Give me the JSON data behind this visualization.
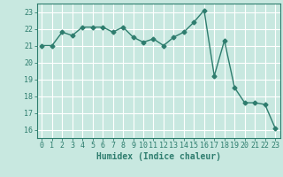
{
  "x": [
    0,
    1,
    2,
    3,
    4,
    5,
    6,
    7,
    8,
    9,
    10,
    11,
    12,
    13,
    14,
    15,
    16,
    17,
    18,
    19,
    20,
    21,
    22,
    23
  ],
  "y": [
    21.0,
    21.0,
    21.8,
    21.6,
    22.1,
    22.1,
    22.1,
    21.8,
    22.1,
    21.5,
    21.2,
    21.4,
    21.0,
    21.5,
    21.8,
    22.4,
    23.1,
    19.2,
    21.3,
    18.5,
    17.6,
    17.6,
    17.5,
    16.1
  ],
  "line_color": "#2e7d6e",
  "marker": "D",
  "marker_size": 2.5,
  "bg_color": "#c8e8e0",
  "grid_major_color": "#ffffff",
  "grid_minor_color": "#ddbcbc",
  "xlabel": "Humidex (Indice chaleur)",
  "ylim": [
    15.5,
    23.5
  ],
  "xlim": [
    -0.5,
    23.5
  ],
  "yticks": [
    16,
    17,
    18,
    19,
    20,
    21,
    22,
    23
  ],
  "xticks": [
    0,
    1,
    2,
    3,
    4,
    5,
    6,
    7,
    8,
    9,
    10,
    11,
    12,
    13,
    14,
    15,
    16,
    17,
    18,
    19,
    20,
    21,
    22,
    23
  ],
  "tick_color": "#2e7d6e",
  "label_fontsize": 6.0,
  "axis_fontsize": 7.0,
  "line_width": 1.0
}
